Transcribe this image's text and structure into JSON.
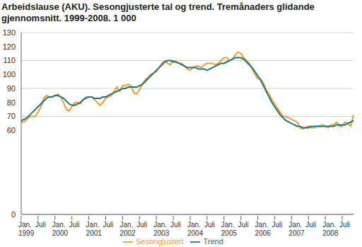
{
  "chart_data": {
    "type": "line",
    "title": "Arbeidslause (AKU). Sesongjusterte tal og trend. Tremånaders glidande gjennomsnitt. 1999-2008. 1 000",
    "categories": [
      "Jan. 1999",
      null,
      null,
      null,
      null,
      null,
      "Juli",
      null,
      null,
      null,
      null,
      null,
      "Jan. 2000",
      null,
      null,
      null,
      null,
      null,
      "Juli",
      null,
      null,
      null,
      null,
      null,
      "Jan. 2001",
      null,
      null,
      null,
      null,
      null,
      "Juli",
      null,
      null,
      null,
      null,
      null,
      "Jan. 2002",
      null,
      null,
      null,
      null,
      null,
      "Juli",
      null,
      null,
      null,
      null,
      null,
      "Jan. 2003",
      null,
      null,
      null,
      null,
      null,
      "Juli",
      null,
      null,
      null,
      null,
      null,
      "Jan. 2004",
      null,
      null,
      null,
      null,
      null,
      "Juli",
      null,
      null,
      null,
      null,
      null,
      "Jan. 2005",
      null,
      null,
      null,
      null,
      null,
      "Juli",
      null,
      null,
      null,
      null,
      null,
      "Jan. 2006",
      null,
      null,
      null,
      null,
      null,
      "Juli",
      null,
      null,
      null,
      null,
      null,
      "Jan. 2007",
      null,
      null,
      null,
      null,
      null,
      "Juli",
      null,
      null,
      null,
      null,
      null,
      "Jan. 2008",
      null,
      null,
      null,
      null,
      null,
      "Juli",
      null,
      null,
      null,
      null
    ],
    "series": [
      {
        "name": "Sesongjustert",
        "color": "#f39a2e",
        "values": [
          66,
          66,
          68,
          70,
          70,
          70,
          73,
          77,
          83,
          85,
          84,
          84,
          85,
          86,
          84,
          80,
          75,
          74,
          77,
          80,
          80,
          79,
          82,
          84,
          84,
          84,
          82,
          80,
          78,
          80,
          83,
          84,
          85,
          88,
          91,
          88,
          92,
          92,
          93,
          92,
          87,
          86,
          89,
          93,
          96,
          98,
          100,
          101,
          102,
          105,
          108,
          110,
          108,
          107,
          110,
          109,
          108,
          108,
          106,
          104,
          103,
          105,
          106,
          106,
          105,
          107,
          108,
          108,
          108,
          107,
          108,
          110,
          112,
          112,
          110,
          111,
          114,
          116,
          115,
          112,
          110,
          108,
          104,
          100,
          97,
          97,
          94,
          89,
          86,
          82,
          79,
          76,
          73,
          70,
          70,
          69,
          68,
          67,
          66,
          62,
          61,
          62,
          63,
          62,
          62,
          63,
          63,
          64,
          63,
          62,
          64,
          64,
          66,
          63,
          63,
          66,
          65,
          63,
          71
        ]
      },
      {
        "name": "Trend",
        "color": "#17787f",
        "values": [
          67,
          68,
          69,
          71,
          73,
          75,
          77,
          79,
          81,
          83,
          84,
          84,
          85,
          85,
          84,
          83,
          81,
          79,
          78,
          78,
          79,
          80,
          82,
          83,
          84,
          84,
          83,
          83,
          83,
          84,
          84,
          85,
          86,
          87,
          88,
          89,
          90,
          90,
          91,
          91,
          91,
          91,
          92,
          93,
          95,
          97,
          99,
          101,
          103,
          105,
          107,
          109,
          110,
          110,
          109,
          109,
          108,
          107,
          106,
          105,
          105,
          105,
          105,
          104,
          104,
          104,
          103,
          104,
          105,
          106,
          107,
          108,
          108,
          109,
          110,
          111,
          112,
          112,
          112,
          111,
          109,
          107,
          105,
          102,
          99,
          96,
          92,
          88,
          84,
          80,
          77,
          74,
          71,
          69,
          67,
          66,
          65,
          64,
          63,
          63,
          62,
          62,
          62,
          63,
          63,
          63,
          63,
          63,
          63,
          63,
          63,
          63,
          64,
          64,
          64,
          64,
          65,
          66,
          67
        ]
      }
    ],
    "ylim": [
      0,
      130
    ],
    "yticks": [
      0,
      60,
      70,
      80,
      90,
      100,
      110,
      120,
      130
    ],
    "grid": true,
    "legend": "bottom"
  }
}
